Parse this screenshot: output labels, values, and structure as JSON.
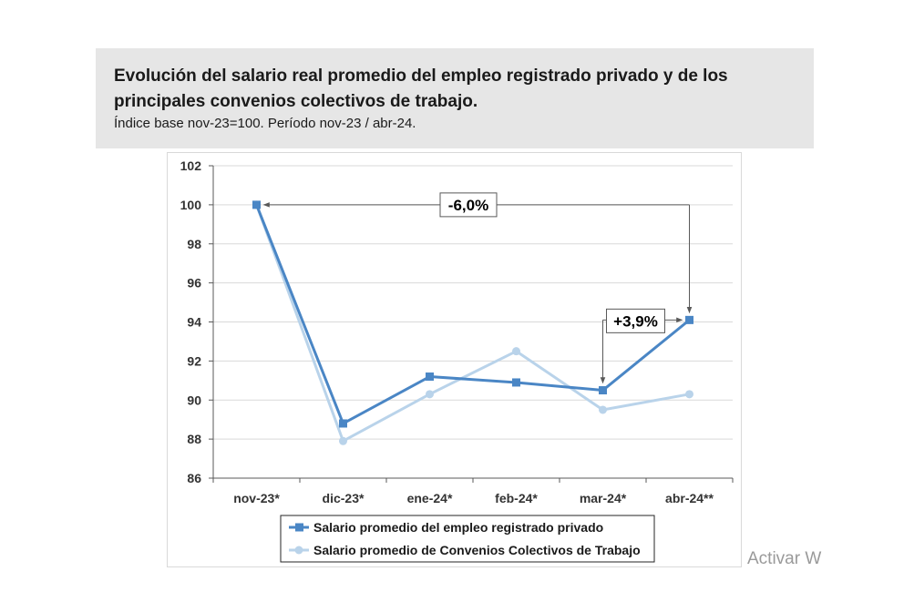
{
  "header": {
    "title": "Evolución del salario real promedio del empleo registrado privado y de los principales convenios colectivos de trabajo.",
    "subtitle": "Índice base nov-23=100. Período nov-23 / abr-24."
  },
  "watermark": "Activar W",
  "chart_data": {
    "type": "line",
    "categories": [
      "nov-23*",
      "dic-23*",
      "ene-24*",
      "feb-24*",
      "mar-24*",
      "abr-24**"
    ],
    "ylim": [
      86,
      102
    ],
    "yticks": [
      86,
      88,
      90,
      92,
      94,
      96,
      98,
      100,
      102
    ],
    "grid": true,
    "legend_position": "bottom",
    "series": [
      {
        "name": "Salario promedio del empleo registrado privado",
        "values": [
          100,
          88.8,
          91.2,
          90.9,
          90.5,
          94.1
        ],
        "color": "#4a86c5",
        "marker": "square"
      },
      {
        "name": "Salario promedio de Convenios Colectivos de Trabajo",
        "values": [
          100,
          87.9,
          90.3,
          92.5,
          89.5,
          90.3
        ],
        "color": "#b9d3ea",
        "marker": "circle"
      }
    ],
    "annotations": [
      {
        "text": "-6,0%",
        "from_category": "nov-23*",
        "to_category": "abr-24**"
      },
      {
        "text": "+3,9%",
        "from_category": "mar-24*",
        "to_category": "abr-24**"
      }
    ]
  }
}
